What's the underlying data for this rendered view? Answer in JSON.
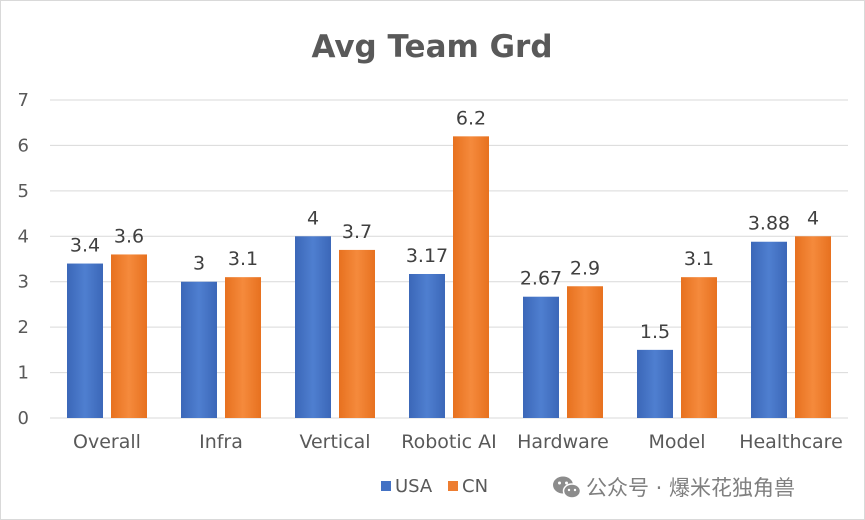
{
  "chart_data": {
    "type": "bar",
    "title": "Avg Team Grd",
    "categories": [
      "Overall",
      "Infra",
      "Vertical",
      "Robotic AI",
      "Hardware",
      "Model",
      "Healthcare"
    ],
    "series": [
      {
        "name": "USA",
        "values": [
          3.4,
          3,
          4,
          3.17,
          2.67,
          1.5,
          3.88
        ],
        "labels": [
          "3.4",
          "3",
          "4",
          "3.17",
          "2.67",
          "1.5",
          "3.88"
        ],
        "color": "#4472C4"
      },
      {
        "name": "CN",
        "values": [
          3.6,
          3.1,
          3.7,
          6.2,
          2.9,
          3.1,
          4
        ],
        "labels": [
          "3.6",
          "3.1",
          "3.7",
          "6.2",
          "2.9",
          "3.1",
          "4"
        ],
        "color": "#ED7D31"
      }
    ],
    "ylim": [
      0,
      7
    ],
    "yticks": [
      "0",
      "1",
      "2",
      "3",
      "4",
      "5",
      "6",
      "7"
    ],
    "grid": true,
    "legend": "bottom",
    "xlabel": "",
    "ylabel": ""
  },
  "watermark": {
    "text": "公众号 · 爆米花独角兽",
    "icon": "wechat-icon"
  }
}
